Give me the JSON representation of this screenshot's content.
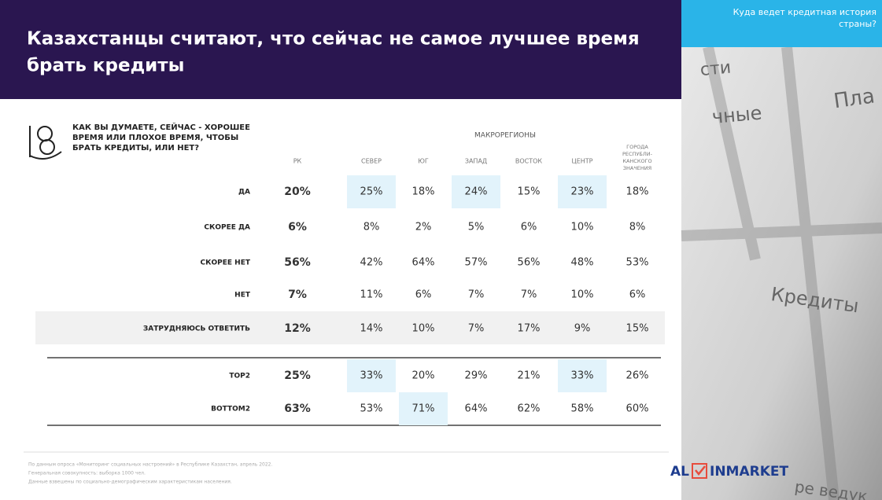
{
  "header": {
    "title": [
      "Казахстанцы считают, что сейчас не самое лучшее время",
      "брать кредиты"
    ],
    "side_title": [
      "Куда ведет кредитная история",
      "страны?"
    ]
  },
  "image_text": [
    "Пла",
    "чные",
    "сти",
    "Кредиты",
    "ре ведук"
  ],
  "question": [
    "КАК ВЫ ДУМАЕТЕ, СЕЙЧАС - ХОРОШЕЕ",
    "ВРЕМЯ ИЛИ ПЛОХОЕ ВРЕМЯ, ЧТОБЫ",
    "БРАТЬ КРЕДИТЫ, ИЛИ НЕТ?"
  ],
  "table": {
    "group_header": "МАКРОРЕГИОНЫ",
    "columns": [
      [
        "РК"
      ],
      [
        "СЕВЕР"
      ],
      [
        "ЮГ"
      ],
      [
        "ЗАПАД"
      ],
      [
        "ВОСТОК"
      ],
      [
        "ЦЕНТР"
      ],
      [
        "ГОРОДА",
        "РЕСПУБЛИ-",
        "КАНСКОГО",
        "ЗНАЧЕНИЯ"
      ]
    ],
    "rows": [
      {
        "label": "ДА",
        "cells": [
          "20%",
          "25%",
          "18%",
          "24%",
          "15%",
          "23%",
          "18%"
        ],
        "highlight": [
          1,
          3,
          5
        ]
      },
      {
        "label": "СКОРЕЕ ДА",
        "cells": [
          "6%",
          "8%",
          "2%",
          "5%",
          "6%",
          "10%",
          "8%"
        ],
        "highlight": []
      },
      {
        "label": "СКОРЕЕ НЕТ",
        "cells": [
          "56%",
          "42%",
          "64%",
          "57%",
          "56%",
          "48%",
          "53%"
        ],
        "highlight": []
      },
      {
        "label": "НЕТ",
        "cells": [
          "7%",
          "11%",
          "6%",
          "7%",
          "7%",
          "10%",
          "6%"
        ],
        "highlight": []
      },
      {
        "label": "ЗАТРУДНЯЮСЬ ОТВЕТИТЬ",
        "cells": [
          "12%",
          "14%",
          "10%",
          "7%",
          "17%",
          "9%",
          "15%"
        ],
        "highlight": []
      },
      {
        "label": "TOP2",
        "cells": [
          "25%",
          "33%",
          "20%",
          "29%",
          "21%",
          "33%",
          "26%"
        ],
        "highlight": [
          1,
          5
        ]
      },
      {
        "label": "BOTTOM2",
        "cells": [
          "63%",
          "53%",
          "71%",
          "64%",
          "62%",
          "58%",
          "60%"
        ],
        "highlight": [
          2
        ]
      }
    ]
  },
  "footnote": [
    "По данным опроса «Мониторинг социальных настроений» в Республике Казахстан, апрель 2022.",
    "Генеральная совокупность: выборка 1000 чел.",
    "Данные взвешены по социально-демографическим характеристикам населения."
  ],
  "logo": {
    "left": "AL",
    "right": "INMARKET"
  }
}
